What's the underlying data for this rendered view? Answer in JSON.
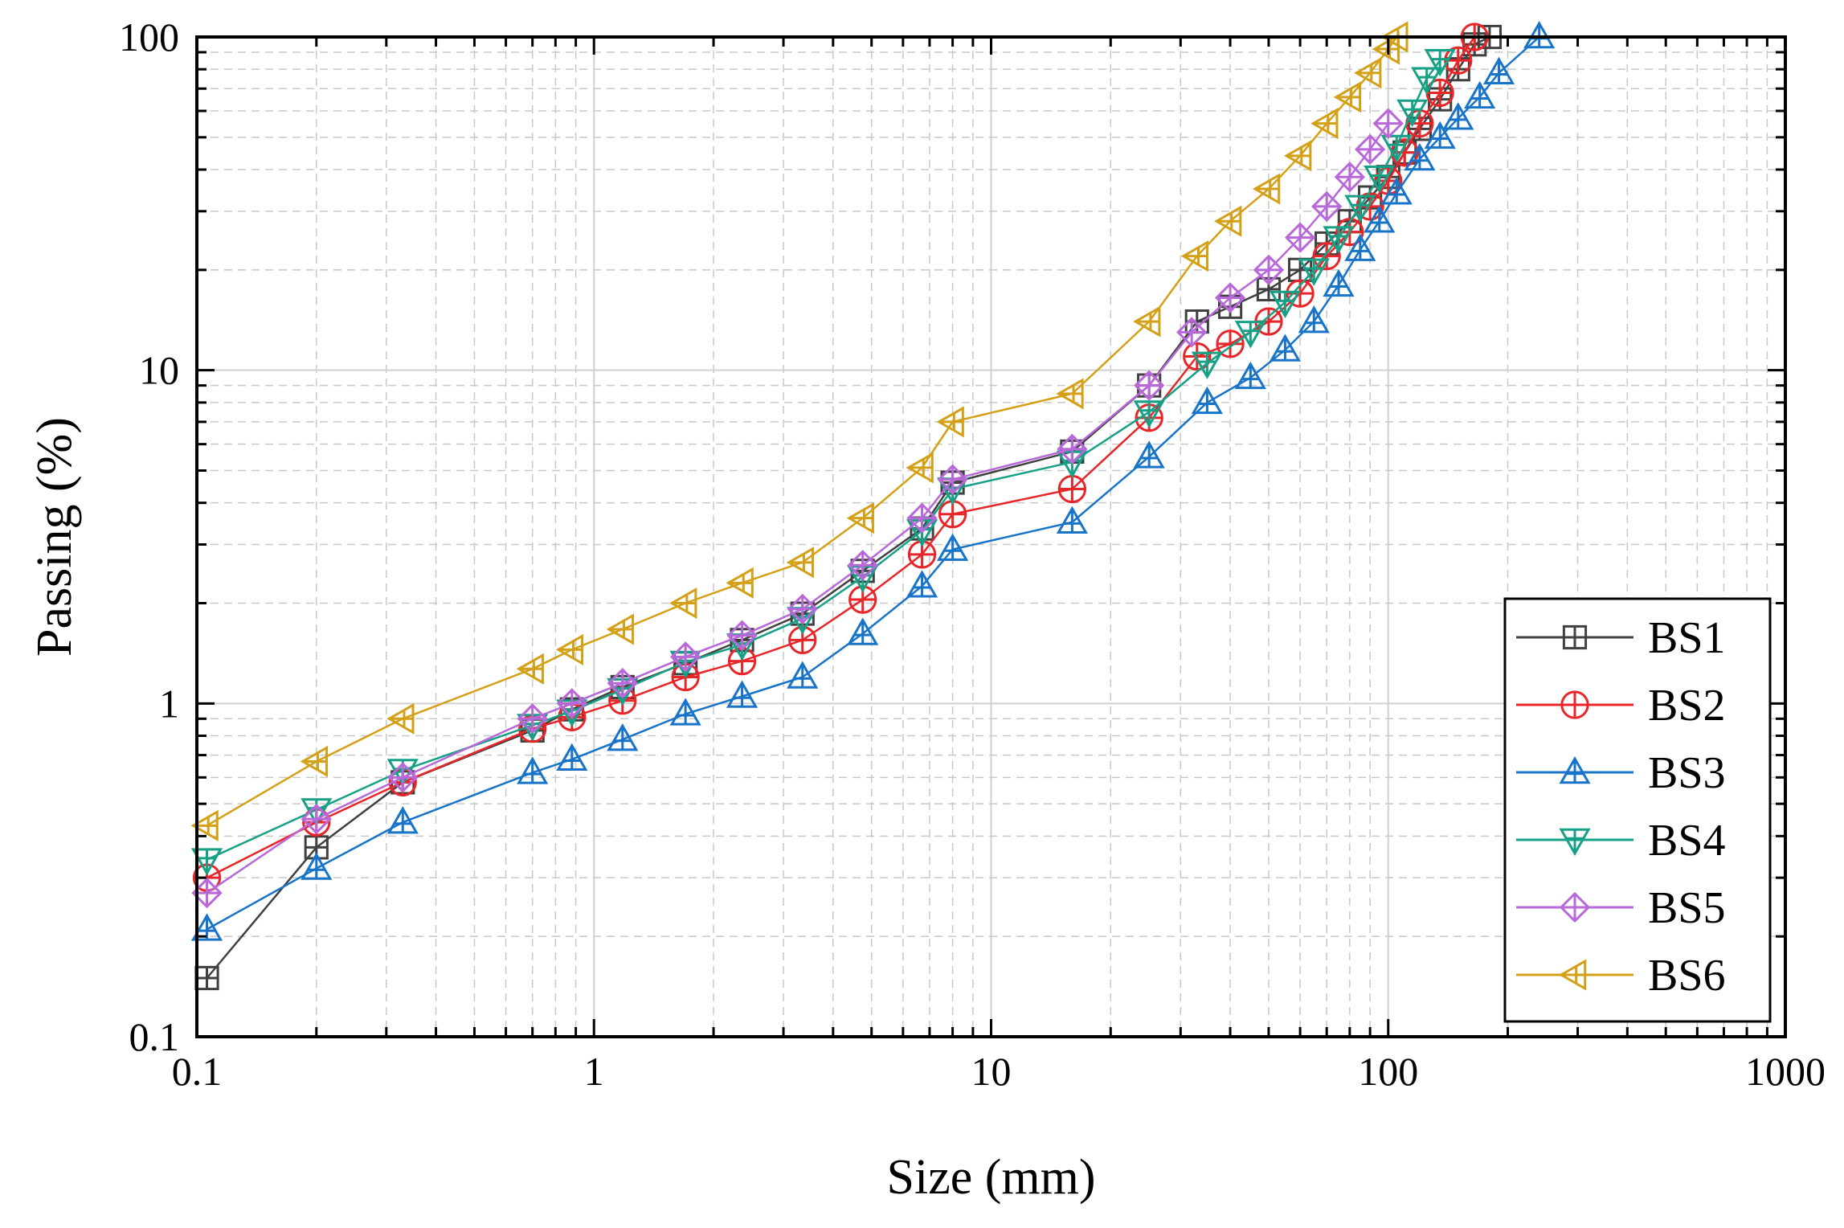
{
  "chart_data": {
    "type": "line",
    "title": "",
    "xlabel": "Size (mm)",
    "ylabel": "Passing (%)",
    "xscale": "log",
    "yscale": "log",
    "xlim": [
      0.1,
      1000
    ],
    "ylim": [
      0.1,
      100
    ],
    "xticks": [
      0.1,
      1,
      10,
      100,
      1000
    ],
    "xtick_labels": [
      "0.1",
      "1",
      "10",
      "100",
      "1000"
    ],
    "yticks": [
      0.1,
      1,
      10,
      100
    ],
    "ytick_labels": [
      "0.1",
      "1",
      "10",
      "100"
    ],
    "grid": true,
    "legend_position": "bottom-right",
    "series": [
      {
        "name": "BS1",
        "color": "#404040",
        "marker": "square-cross",
        "x": [
          0.106,
          0.2,
          0.33,
          0.7,
          0.88,
          1.18,
          1.7,
          2.36,
          3.35,
          4.75,
          6.7,
          8.0,
          16.0,
          25.0,
          33.0,
          40.0,
          50.0,
          60.0,
          70.0,
          80.0,
          90.0,
          100.0,
          110.0,
          120.0,
          135.0,
          150.0,
          165.0,
          180.0
        ],
        "y": [
          0.15,
          0.37,
          0.58,
          0.83,
          0.96,
          1.12,
          1.32,
          1.55,
          1.86,
          2.5,
          3.35,
          4.6,
          5.7,
          9.0,
          14.0,
          15.5,
          17.5,
          20.0,
          24.0,
          28.0,
          33.0,
          38.0,
          45.0,
          53.0,
          65.0,
          80.0,
          95.0,
          100.0
        ]
      },
      {
        "name": "BS2",
        "color": "#e8262a",
        "marker": "circle-cross",
        "x": [
          0.106,
          0.2,
          0.33,
          0.7,
          0.88,
          1.18,
          1.7,
          2.36,
          3.35,
          4.75,
          6.7,
          8.0,
          16.0,
          25.0,
          33.0,
          40.0,
          50.0,
          60.0,
          70.0,
          80.0,
          90.0,
          100.0,
          110.0,
          120.0,
          135.0,
          150.0,
          165.0
        ],
        "y": [
          0.3,
          0.44,
          0.58,
          0.84,
          0.91,
          1.02,
          1.2,
          1.34,
          1.55,
          2.05,
          2.8,
          3.7,
          4.4,
          7.2,
          11.0,
          12.0,
          14.0,
          17.0,
          22.0,
          26.0,
          31.0,
          37.0,
          45.0,
          55.0,
          68.0,
          85.0,
          100.0
        ]
      },
      {
        "name": "BS3",
        "color": "#1874c8",
        "marker": "triangle-up-cross",
        "x": [
          0.106,
          0.2,
          0.33,
          0.7,
          0.88,
          1.18,
          1.7,
          2.36,
          3.35,
          4.75,
          6.7,
          8.0,
          16.0,
          25.0,
          35.0,
          45.0,
          55.0,
          65.0,
          75.0,
          85.0,
          95.0,
          105.0,
          120.0,
          135.0,
          150.0,
          170.0,
          190.0,
          240.0
        ],
        "y": [
          0.21,
          0.32,
          0.44,
          0.62,
          0.68,
          0.78,
          0.93,
          1.05,
          1.2,
          1.62,
          2.25,
          2.9,
          3.5,
          5.5,
          8.0,
          9.5,
          11.5,
          14.0,
          18.0,
          23.0,
          28.0,
          34.0,
          43.0,
          50.0,
          57.0,
          66.0,
          78.0,
          100.0
        ]
      },
      {
        "name": "BS4",
        "color": "#16a085",
        "marker": "triangle-down-cross",
        "x": [
          0.106,
          0.2,
          0.33,
          0.7,
          0.88,
          1.18,
          1.7,
          2.36,
          3.35,
          4.75,
          6.7,
          8.0,
          16.0,
          25.0,
          35.0,
          45.0,
          55.0,
          65.0,
          75.0,
          85.0,
          95.0,
          105.0,
          115.0,
          125.0,
          135.0
        ],
        "y": [
          0.34,
          0.48,
          0.63,
          0.86,
          0.95,
          1.1,
          1.33,
          1.5,
          1.8,
          2.4,
          3.3,
          4.4,
          5.3,
          7.5,
          10.5,
          13.0,
          16.0,
          20.0,
          25.0,
          31.0,
          38.0,
          47.0,
          60.0,
          75.0,
          85.0
        ]
      },
      {
        "name": "BS5",
        "color": "#b868d8",
        "marker": "diamond-cross",
        "x": [
          0.106,
          0.2,
          0.33,
          0.7,
          0.88,
          1.18,
          1.7,
          2.36,
          3.35,
          4.75,
          6.7,
          8.0,
          16.0,
          25.0,
          32.0,
          40.0,
          50.0,
          60.0,
          70.0,
          80.0,
          90.0,
          100.0
        ],
        "y": [
          0.27,
          0.45,
          0.6,
          0.9,
          1.0,
          1.15,
          1.38,
          1.6,
          1.92,
          2.6,
          3.6,
          4.7,
          5.8,
          9.0,
          13.0,
          16.5,
          20.0,
          25.0,
          31.0,
          38.0,
          46.0,
          55.0
        ]
      },
      {
        "name": "BS6",
        "color": "#d4a017",
        "marker": "triangle-left-cross",
        "x": [
          0.106,
          0.2,
          0.33,
          0.7,
          0.88,
          1.18,
          1.7,
          2.36,
          3.35,
          4.75,
          6.7,
          8.0,
          16.0,
          25.0,
          33.0,
          40.0,
          50.0,
          60.0,
          70.0,
          80.0,
          90.0,
          100.0,
          105.0
        ],
        "y": [
          0.43,
          0.67,
          0.9,
          1.27,
          1.45,
          1.67,
          2.0,
          2.3,
          2.65,
          3.6,
          5.1,
          7.0,
          8.5,
          14.0,
          22.0,
          28.0,
          35.0,
          44.0,
          55.0,
          66.0,
          78.0,
          92.0,
          100.0
        ]
      }
    ]
  }
}
